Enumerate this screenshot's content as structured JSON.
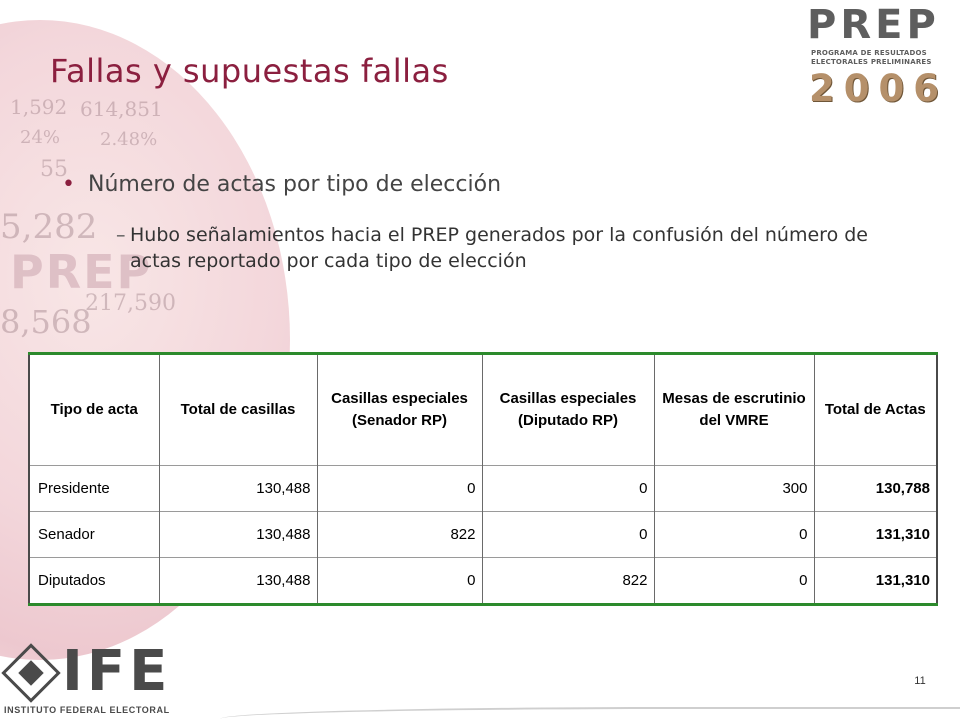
{
  "slide": {
    "title": "Fallas y supuestas fallas",
    "page_number": "11"
  },
  "logos": {
    "prep": {
      "word": "PREP",
      "subtitle_line1": "PROGRAMA DE RESULTADOS",
      "subtitle_line2": "ELECTORALES PRELIMINARES",
      "year": "2006"
    },
    "ife": {
      "word": "IFE",
      "subtitle": "INSTITUTO FEDERAL ELECTORAL"
    }
  },
  "background": {
    "numbers": [
      "5,282",
      "8,568",
      "217,590",
      "1,592",
      "614,851",
      "24%",
      "2.48%",
      "55"
    ],
    "word": "PREP"
  },
  "bullets": {
    "level1": "Número de actas por tipo de elección",
    "level2": "Hubo señalamientos hacia el PREP generados por la confusión del número de actas reportado por cada tipo de elección"
  },
  "table": {
    "headers": [
      "Tipo de acta",
      "Total de casillas",
      "Casillas especiales (Senador RP)",
      "Casillas especiales (Diputado RP)",
      "Mesas de escrutinio del VMRE",
      "Total de Actas"
    ],
    "rows": [
      [
        "Presidente",
        "130,488",
        "0",
        "0",
        "300",
        "130,788"
      ],
      [
        "Senador",
        "130,488",
        "822",
        "0",
        "0",
        "131,310"
      ],
      [
        "Diputados",
        "130,488",
        "0",
        "822",
        "0",
        "131,310"
      ]
    ]
  },
  "colors": {
    "title": "#8b1f3f",
    "table_border_accent": "#2c8a2c",
    "logo_gray": "#5e5e5e",
    "logo_year": "#b5906a"
  }
}
